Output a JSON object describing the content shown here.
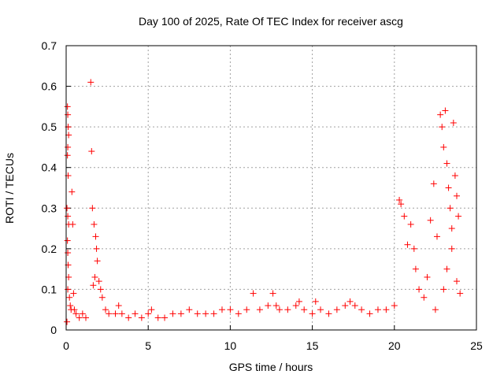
{
  "chart_data": {
    "type": "scatter",
    "title": "Day 100 of 2025, Rate Of TEC Index for receiver ascg",
    "xlabel": "GPS time / hours",
    "ylabel": "ROTI / TECUs",
    "xlim": [
      0,
      25
    ],
    "ylim": [
      0,
      0.7
    ],
    "x_ticks": [
      0,
      5,
      10,
      15,
      20,
      25
    ],
    "y_ticks": [
      0,
      0.1,
      0.2,
      0.3,
      0.4,
      0.5,
      0.6,
      0.7
    ],
    "x_tick_labels": [
      "0",
      "5",
      "10",
      "15",
      "20",
      "25"
    ],
    "y_tick_labels": [
      "0",
      "0.1",
      "0.2",
      "0.3",
      "0.4",
      "0.5",
      "0.6",
      "0.7"
    ],
    "grid": true,
    "marker": "+",
    "color": "#ff0000",
    "series": [
      {
        "points": [
          [
            0.05,
            0.02
          ],
          [
            0.08,
            0.55
          ],
          [
            0.1,
            0.53
          ],
          [
            0.12,
            0.5
          ],
          [
            0.15,
            0.48
          ],
          [
            0.1,
            0.45
          ],
          [
            0.08,
            0.43
          ],
          [
            0.12,
            0.38
          ],
          [
            0.05,
            0.3
          ],
          [
            0.1,
            0.28
          ],
          [
            0.15,
            0.26
          ],
          [
            0.08,
            0.22
          ],
          [
            0.1,
            0.19
          ],
          [
            0.12,
            0.16
          ],
          [
            0.15,
            0.13
          ],
          [
            0.1,
            0.1
          ],
          [
            0.2,
            0.08
          ],
          [
            0.25,
            0.06
          ],
          [
            0.3,
            0.05
          ],
          [
            0.35,
            0.34
          ],
          [
            0.4,
            0.26
          ],
          [
            0.45,
            0.09
          ],
          [
            0.5,
            0.05
          ],
          [
            0.6,
            0.04
          ],
          [
            0.8,
            0.03
          ],
          [
            1.0,
            0.04
          ],
          [
            1.2,
            0.03
          ],
          [
            1.5,
            0.61
          ],
          [
            1.55,
            0.44
          ],
          [
            1.6,
            0.3
          ],
          [
            1.7,
            0.26
          ],
          [
            1.8,
            0.23
          ],
          [
            1.85,
            0.2
          ],
          [
            1.9,
            0.17
          ],
          [
            2.0,
            0.12
          ],
          [
            2.1,
            0.1
          ],
          [
            1.75,
            0.13
          ],
          [
            1.65,
            0.11
          ],
          [
            2.2,
            0.08
          ],
          [
            2.4,
            0.05
          ],
          [
            2.6,
            0.04
          ],
          [
            3.0,
            0.04
          ],
          [
            3.2,
            0.06
          ],
          [
            3.4,
            0.04
          ],
          [
            3.8,
            0.03
          ],
          [
            4.2,
            0.04
          ],
          [
            4.6,
            0.03
          ],
          [
            5.0,
            0.04
          ],
          [
            5.2,
            0.05
          ],
          [
            5.6,
            0.03
          ],
          [
            6.0,
            0.03
          ],
          [
            6.5,
            0.04
          ],
          [
            7.0,
            0.04
          ],
          [
            7.5,
            0.05
          ],
          [
            8.0,
            0.04
          ],
          [
            8.5,
            0.04
          ],
          [
            9.0,
            0.04
          ],
          [
            9.5,
            0.05
          ],
          [
            10.0,
            0.05
          ],
          [
            10.5,
            0.04
          ],
          [
            11.0,
            0.05
          ],
          [
            11.4,
            0.09
          ],
          [
            11.8,
            0.05
          ],
          [
            12.3,
            0.06
          ],
          [
            12.6,
            0.09
          ],
          [
            12.8,
            0.06
          ],
          [
            13.0,
            0.05
          ],
          [
            13.5,
            0.05
          ],
          [
            14.0,
            0.06
          ],
          [
            14.2,
            0.07
          ],
          [
            14.5,
            0.05
          ],
          [
            15.0,
            0.04
          ],
          [
            15.2,
            0.07
          ],
          [
            15.5,
            0.05
          ],
          [
            16.0,
            0.04
          ],
          [
            16.5,
            0.05
          ],
          [
            17.0,
            0.06
          ],
          [
            17.3,
            0.07
          ],
          [
            17.6,
            0.06
          ],
          [
            18.0,
            0.05
          ],
          [
            18.5,
            0.04
          ],
          [
            19.0,
            0.05
          ],
          [
            19.5,
            0.05
          ],
          [
            20.0,
            0.06
          ],
          [
            20.3,
            0.32
          ],
          [
            20.4,
            0.31
          ],
          [
            20.6,
            0.28
          ],
          [
            20.8,
            0.21
          ],
          [
            21.0,
            0.26
          ],
          [
            21.2,
            0.2
          ],
          [
            21.3,
            0.15
          ],
          [
            21.5,
            0.1
          ],
          [
            21.8,
            0.08
          ],
          [
            22.0,
            0.13
          ],
          [
            22.2,
            0.27
          ],
          [
            22.4,
            0.36
          ],
          [
            22.6,
            0.23
          ],
          [
            22.8,
            0.53
          ],
          [
            22.9,
            0.5
          ],
          [
            23.0,
            0.45
          ],
          [
            23.1,
            0.54
          ],
          [
            23.2,
            0.41
          ],
          [
            23.3,
            0.35
          ],
          [
            23.4,
            0.3
          ],
          [
            23.5,
            0.25
          ],
          [
            23.6,
            0.51
          ],
          [
            23.7,
            0.38
          ],
          [
            23.8,
            0.33
          ],
          [
            23.9,
            0.28
          ],
          [
            23.5,
            0.2
          ],
          [
            23.2,
            0.15
          ],
          [
            23.0,
            0.1
          ],
          [
            22.5,
            0.05
          ],
          [
            23.8,
            0.12
          ],
          [
            24.0,
            0.09
          ]
        ]
      }
    ]
  }
}
